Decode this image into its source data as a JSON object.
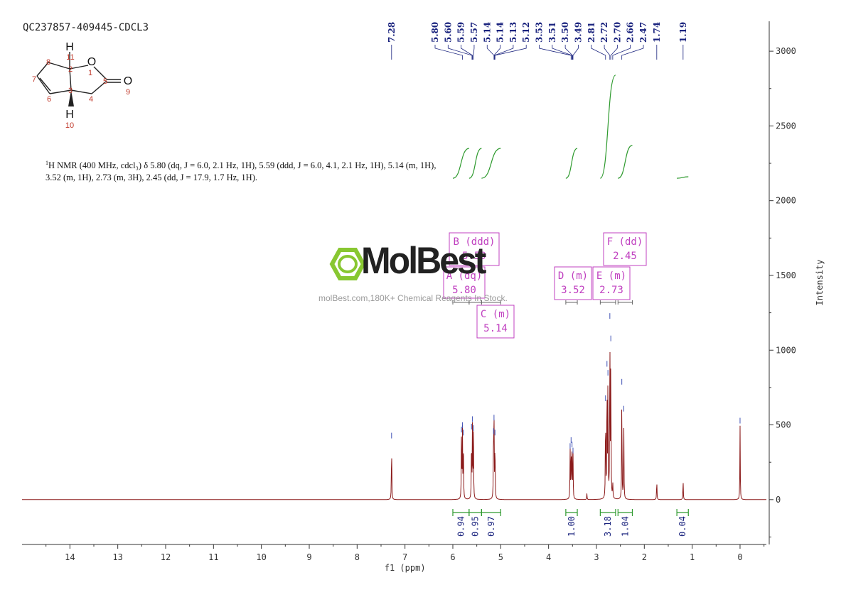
{
  "title": "QC237857-409445-CDCL3",
  "description": {
    "nucleus_sup": "1",
    "text": "H NMR (400 MHz, cdcl₃) δ 5.80 (dq, J = 6.0, 2.1 Hz, 1H), 5.59 (ddd, J = 6.0, 4.1, 2.1 Hz, 1H), 5.14 (m, 1H), 3.52 (m, 1H), 2.73 (m, 3H), 2.45 (dd, J = 17.9, 1.7 Hz, 1H)."
  },
  "watermark": {
    "brand": "MolBest",
    "url": "molBest.com,180K+ Chemical Reagents In Stock."
  },
  "molecule": {
    "atom_labels": [
      "O",
      "O",
      "H",
      "H"
    ],
    "atom_numbers": [
      "1",
      "2",
      "3",
      "4",
      "5",
      "6",
      "7",
      "8",
      "9",
      "10",
      "11"
    ]
  },
  "colors": {
    "spectrum": "#8b1a1a",
    "integral": "#2e9a2e",
    "peak_label": "#1a237e",
    "multiplet_box": "#c040c0",
    "axis": "#333333",
    "watermark_green": "#7cc21b",
    "atom_number": "#c0392b"
  },
  "chart_data": {
    "type": "line",
    "xlabel": "f1 (ppm)",
    "ylabel": "Intensity",
    "xlim": [
      15.0,
      -0.55
    ],
    "ylim": [
      -300,
      3200
    ],
    "x_reversed": true,
    "x_ticks": [
      14,
      13,
      12,
      11,
      10,
      9,
      8,
      7,
      6,
      5,
      4,
      3,
      2,
      1,
      0
    ],
    "y_ticks": [
      0,
      500,
      1000,
      1500,
      2000,
      2500,
      3000
    ],
    "grid": false,
    "peak_labels": [
      "7.28",
      "5.80",
      "5.60",
      "5.59",
      "5.57",
      "5.14",
      "5.14",
      "5.13",
      "5.12",
      "3.53",
      "3.51",
      "3.50",
      "3.49",
      "2.81",
      "2.72",
      "2.70",
      "2.66",
      "2.47",
      "1.74",
      "1.19"
    ],
    "peak_label_ppm": [
      7.28,
      5.8,
      5.6,
      5.59,
      5.57,
      5.14,
      5.14,
      5.13,
      5.12,
      3.53,
      3.51,
      3.5,
      3.49,
      2.81,
      2.72,
      2.7,
      2.66,
      2.47,
      1.74,
      1.19
    ],
    "peaks": [
      {
        "ppm": 7.28,
        "height": 400
      },
      {
        "ppm": 5.82,
        "height": 440
      },
      {
        "ppm": 5.8,
        "height": 470
      },
      {
        "ppm": 5.78,
        "height": 420
      },
      {
        "ppm": 5.61,
        "height": 460
      },
      {
        "ppm": 5.59,
        "height": 510
      },
      {
        "ppm": 5.57,
        "height": 450
      },
      {
        "ppm": 5.15,
        "height": 430
      },
      {
        "ppm": 5.14,
        "height": 520
      },
      {
        "ppm": 5.12,
        "height": 420
      },
      {
        "ppm": 3.55,
        "height": 330
      },
      {
        "ppm": 3.53,
        "height": 370
      },
      {
        "ppm": 3.51,
        "height": 340
      },
      {
        "ppm": 3.49,
        "height": 300
      },
      {
        "ppm": 3.2,
        "height": 40
      },
      {
        "ppm": 2.81,
        "height": 650
      },
      {
        "ppm": 2.78,
        "height": 880
      },
      {
        "ppm": 2.76,
        "height": 820
      },
      {
        "ppm": 2.72,
        "height": 1200
      },
      {
        "ppm": 2.7,
        "height": 1050
      },
      {
        "ppm": 2.66,
        "height": 110
      },
      {
        "ppm": 2.47,
        "height": 760
      },
      {
        "ppm": 2.43,
        "height": 580
      },
      {
        "ppm": 1.74,
        "height": 140
      },
      {
        "ppm": 1.19,
        "height": 140
      },
      {
        "ppm": 0.0,
        "height": 500
      }
    ],
    "integrals": [
      {
        "label": "0.94",
        "from": 6.0,
        "to": 5.66,
        "curve_bottom": 2150,
        "curve_top": 2350
      },
      {
        "label": "0.95",
        "from": 5.66,
        "to": 5.4,
        "curve_bottom": 2150,
        "curve_top": 2350
      },
      {
        "label": "0.97",
        "from": 5.4,
        "to": 5.0,
        "curve_bottom": 2150,
        "curve_top": 2350
      },
      {
        "label": "1.00",
        "from": 3.64,
        "to": 3.4,
        "curve_bottom": 2150,
        "curve_top": 2350
      },
      {
        "label": "3.18",
        "from": 2.92,
        "to": 2.6,
        "curve_bottom": 2150,
        "curve_top": 2840
      },
      {
        "label": "1.04",
        "from": 2.55,
        "to": 2.25,
        "curve_bottom": 2150,
        "curve_top": 2370
      },
      {
        "label": "0.04",
        "from": 1.32,
        "to": 1.08,
        "curve_bottom": 2150,
        "curve_top": 2160
      }
    ],
    "multiplets": [
      {
        "letter": "A",
        "type": "dq",
        "shift": "5.80",
        "from": 6.0,
        "to": 5.66
      },
      {
        "letter": "B",
        "type": "ddd",
        "shift": "5.59",
        "from": 5.66,
        "to": 5.4
      },
      {
        "letter": "C",
        "type": "m",
        "shift": "5.14",
        "from": 5.4,
        "to": 5.0
      },
      {
        "letter": "D",
        "type": "m",
        "shift": "3.52",
        "from": 3.64,
        "to": 3.4
      },
      {
        "letter": "E",
        "type": "m",
        "shift": "2.73",
        "from": 2.92,
        "to": 2.6
      },
      {
        "letter": "F",
        "type": "dd",
        "shift": "2.45",
        "from": 2.55,
        "to": 2.25
      }
    ]
  }
}
